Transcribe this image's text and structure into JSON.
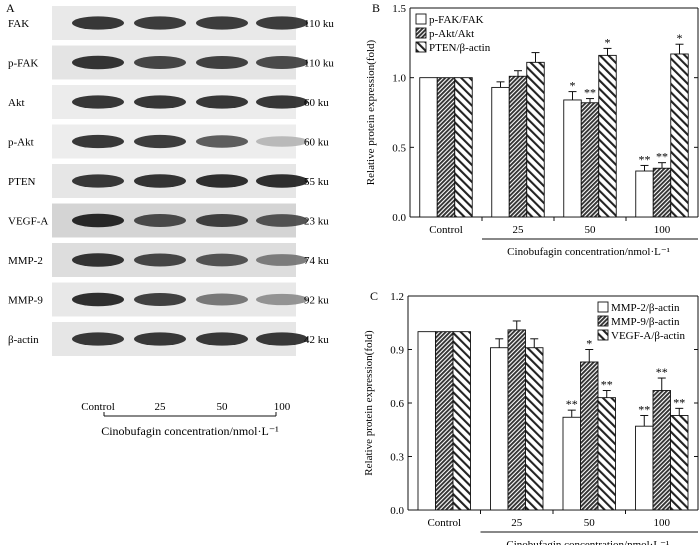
{
  "panelA": {
    "label": "A",
    "rows": [
      {
        "name": "FAK",
        "size": "110 ku",
        "intensities": [
          0.86,
          0.84,
          0.84,
          0.84
        ],
        "bg": "#e9e9e9"
      },
      {
        "name": "p-FAK",
        "size": "110 ku",
        "intensities": [
          0.88,
          0.8,
          0.82,
          0.78
        ],
        "bg": "#e4e4e4"
      },
      {
        "name": "Akt",
        "size": "60 ku",
        "intensities": [
          0.86,
          0.86,
          0.86,
          0.86
        ],
        "bg": "#ececec"
      },
      {
        "name": "p-Akt",
        "size": "60 ku",
        "intensities": [
          0.86,
          0.84,
          0.7,
          0.3
        ],
        "bg": "#ededed"
      },
      {
        "name": "PTEN",
        "size": "55 ku",
        "intensities": [
          0.86,
          0.88,
          0.9,
          0.9
        ],
        "bg": "#e6e6e6"
      },
      {
        "name": "VEGF-A",
        "size": "23 ku",
        "intensities": [
          0.92,
          0.78,
          0.82,
          0.74
        ],
        "bg": "#d4d4d4"
      },
      {
        "name": "MMP-2",
        "size": "74 ku",
        "intensities": [
          0.88,
          0.8,
          0.74,
          0.56
        ],
        "bg": "#dddddd"
      },
      {
        "name": "MMP-9",
        "size": "92 ku",
        "intensities": [
          0.9,
          0.82,
          0.58,
          0.46
        ],
        "bg": "#e8e8e8"
      },
      {
        "name": "β-actin",
        "size": "42 ku",
        "intensities": [
          0.86,
          0.86,
          0.86,
          0.86
        ],
        "bg": "#e6e6e6"
      }
    ],
    "lanes": [
      "Control",
      "25",
      "50",
      "100"
    ],
    "xlabel": "Cinobufagin concentration/nmol·L⁻¹"
  },
  "chart_data": [
    {
      "panel": "B",
      "type": "bar",
      "categories": [
        "Control",
        "25",
        "50",
        "100"
      ],
      "series": [
        {
          "name": "p-FAK/FAK",
          "pattern": "white",
          "values": [
            1.0,
            0.93,
            0.84,
            0.33
          ],
          "errors": [
            0.0,
            0.04,
            0.06,
            0.04
          ],
          "marks": [
            "",
            "",
            "*",
            "**"
          ]
        },
        {
          "name": "p-Akt/Akt",
          "pattern": "dense",
          "values": [
            1.0,
            1.01,
            0.82,
            0.35
          ],
          "errors": [
            0.0,
            0.04,
            0.03,
            0.04
          ],
          "marks": [
            "",
            "",
            "**",
            "**"
          ]
        },
        {
          "name": "PTEN/β-actin",
          "pattern": "diag",
          "values": [
            1.0,
            1.11,
            1.16,
            1.17
          ],
          "errors": [
            0.0,
            0.07,
            0.05,
            0.07
          ],
          "marks": [
            "",
            "",
            "*",
            "*"
          ]
        }
      ],
      "ylabel": "Relative protein expression(fold)",
      "xlabel": "Cinobufagin concentration/nmol·L⁻¹",
      "ylim": [
        0,
        1.5
      ],
      "yticks": [
        0.0,
        0.5,
        1.0,
        1.5
      ],
      "legend": "top-left"
    },
    {
      "panel": "C",
      "type": "bar",
      "categories": [
        "Control",
        "25",
        "50",
        "100"
      ],
      "series": [
        {
          "name": "MMP-2/β-actin",
          "pattern": "white",
          "values": [
            1.0,
            0.91,
            0.52,
            0.47
          ],
          "errors": [
            0.0,
            0.05,
            0.04,
            0.06
          ],
          "marks": [
            "",
            "",
            "**",
            "**"
          ]
        },
        {
          "name": "MMP-9/β-actin",
          "pattern": "dense",
          "values": [
            1.0,
            1.01,
            0.83,
            0.67
          ],
          "errors": [
            0.0,
            0.05,
            0.07,
            0.07
          ],
          "marks": [
            "",
            "",
            "*",
            "**"
          ]
        },
        {
          "name": "VEGF-A/β-actin",
          "pattern": "diag",
          "values": [
            1.0,
            0.91,
            0.63,
            0.53
          ],
          "errors": [
            0.0,
            0.05,
            0.04,
            0.04
          ],
          "marks": [
            "",
            "",
            "**",
            "**"
          ]
        }
      ],
      "ylabel": "Relative protein expression(fold)",
      "xlabel": "Cinobufagin concentration/nmol·L⁻¹",
      "ylim": [
        0,
        1.2
      ],
      "yticks": [
        0.0,
        0.3,
        0.6,
        0.9,
        1.2
      ],
      "legend": "top-right"
    }
  ]
}
